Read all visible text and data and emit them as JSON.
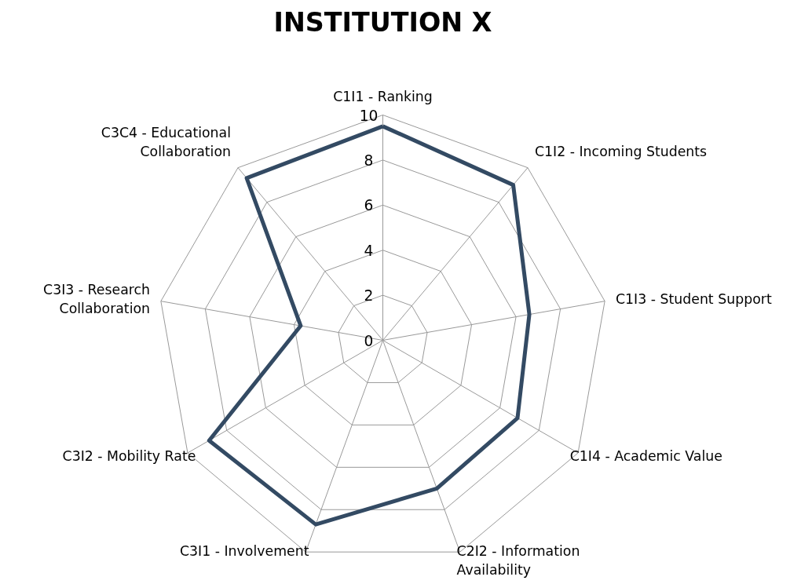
{
  "chart_data": {
    "type": "radar",
    "title": "INSTITUTION X",
    "categories": [
      "C1I1 - Ranking",
      "C1I2 - Incoming Students",
      "C1I3 - Student Support",
      "C1I4 - Academic Value",
      "C2I2 - Information\nAvailability",
      "C3I1 - Involvement",
      "C3I2 - Mobility Rate",
      "C3I3 - Research\nCollaboration",
      "C3C4 - Educational\nCollaboration"
    ],
    "series": [
      {
        "color": "#334a63",
        "values": [
          9.5,
          9.0,
          6.6,
          6.9,
          7.0,
          8.7,
          8.9,
          3.7,
          9.4
        ]
      }
    ],
    "ylim": [
      0,
      10
    ],
    "yticks": [
      0,
      2,
      4,
      6,
      8,
      10
    ],
    "grid": true,
    "marker": "none",
    "line_style": "solid"
  }
}
